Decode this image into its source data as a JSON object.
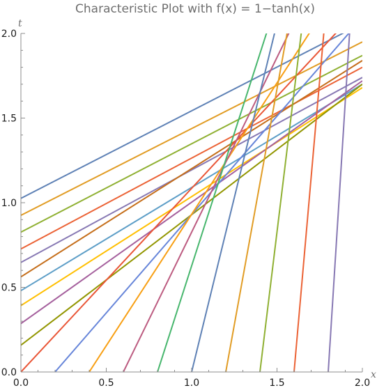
{
  "chart_data": {
    "type": "line",
    "title": "Characteristic Plot with f(x) = 1−tanh(x)",
    "xlabel": "x",
    "ylabel": "t",
    "xlim": [
      0,
      2
    ],
    "ylim": [
      0,
      2
    ],
    "x_ticks": [
      "0.0",
      "0.5",
      "1.0",
      "1.5",
      "2.0"
    ],
    "y_ticks": [
      "0.0",
      "0.5",
      "1.0",
      "1.5",
      "2.0"
    ],
    "grid": false,
    "legend": "none",
    "series_description": "Characteristic lines; each series listed as two endpoints [x, t]",
    "series": [
      {
        "color": "#5e81b5",
        "points": [
          [
            -0.05,
            1.0
          ],
          [
            2.0,
            2.06
          ]
        ]
      },
      {
        "color": "#e19c24",
        "points": [
          [
            -0.05,
            0.9
          ],
          [
            2.0,
            1.95
          ]
        ]
      },
      {
        "color": "#8fb032",
        "points": [
          [
            -0.05,
            0.8
          ],
          [
            2.0,
            1.87
          ]
        ]
      },
      {
        "color": "#eb6235",
        "points": [
          [
            -0.05,
            0.7
          ],
          [
            2.0,
            1.8
          ]
        ]
      },
      {
        "color": "#8778b3",
        "points": [
          [
            -0.05,
            0.62
          ],
          [
            2.0,
            1.74
          ]
        ]
      },
      {
        "color": "#c56e1a",
        "points": [
          [
            -0.05,
            0.53
          ],
          [
            2.0,
            1.84
          ]
        ]
      },
      {
        "color": "#5d9ec7",
        "points": [
          [
            -0.05,
            0.45
          ],
          [
            2.0,
            1.7
          ]
        ]
      },
      {
        "color": "#ffbf00",
        "points": [
          [
            -0.05,
            0.36
          ],
          [
            2.0,
            1.68
          ]
        ]
      },
      {
        "color": "#a5609d",
        "points": [
          [
            -0.05,
            0.25
          ],
          [
            2.0,
            1.72
          ]
        ]
      },
      {
        "color": "#929600",
        "points": [
          [
            -0.05,
            0.12
          ],
          [
            2.0,
            1.7
          ]
        ]
      },
      {
        "color": "#e95536",
        "points": [
          [
            0.0,
            0.0
          ],
          [
            2.0,
            2.17
          ]
        ]
      },
      {
        "color": "#6685d9",
        "points": [
          [
            0.2,
            0.0
          ],
          [
            1.92,
            2.0
          ]
        ]
      },
      {
        "color": "#f89f13",
        "points": [
          [
            0.4,
            0.0
          ],
          [
            1.83,
            2.22
          ]
        ]
      },
      {
        "color": "#bc5b80",
        "points": [
          [
            0.6,
            0.0
          ],
          [
            1.68,
            2.23
          ]
        ]
      },
      {
        "color": "#47b66d",
        "points": [
          [
            0.8,
            0.0
          ],
          [
            1.47,
            2.1
          ]
        ]
      },
      {
        "color": "#5e81b5",
        "points": [
          [
            1.0,
            0.0
          ],
          [
            1.5,
            2.06
          ]
        ]
      },
      {
        "color": "#e19c24",
        "points": [
          [
            1.2,
            0.0
          ],
          [
            1.6,
            2.23
          ]
        ]
      },
      {
        "color": "#8fb032",
        "points": [
          [
            1.4,
            0.0
          ],
          [
            1.66,
            2.15
          ]
        ]
      },
      {
        "color": "#eb6235",
        "points": [
          [
            1.6,
            0.0
          ],
          [
            1.78,
            2.07
          ]
        ]
      },
      {
        "color": "#8778b3",
        "points": [
          [
            1.8,
            0.0
          ],
          [
            1.93,
            2.08
          ]
        ]
      }
    ]
  }
}
